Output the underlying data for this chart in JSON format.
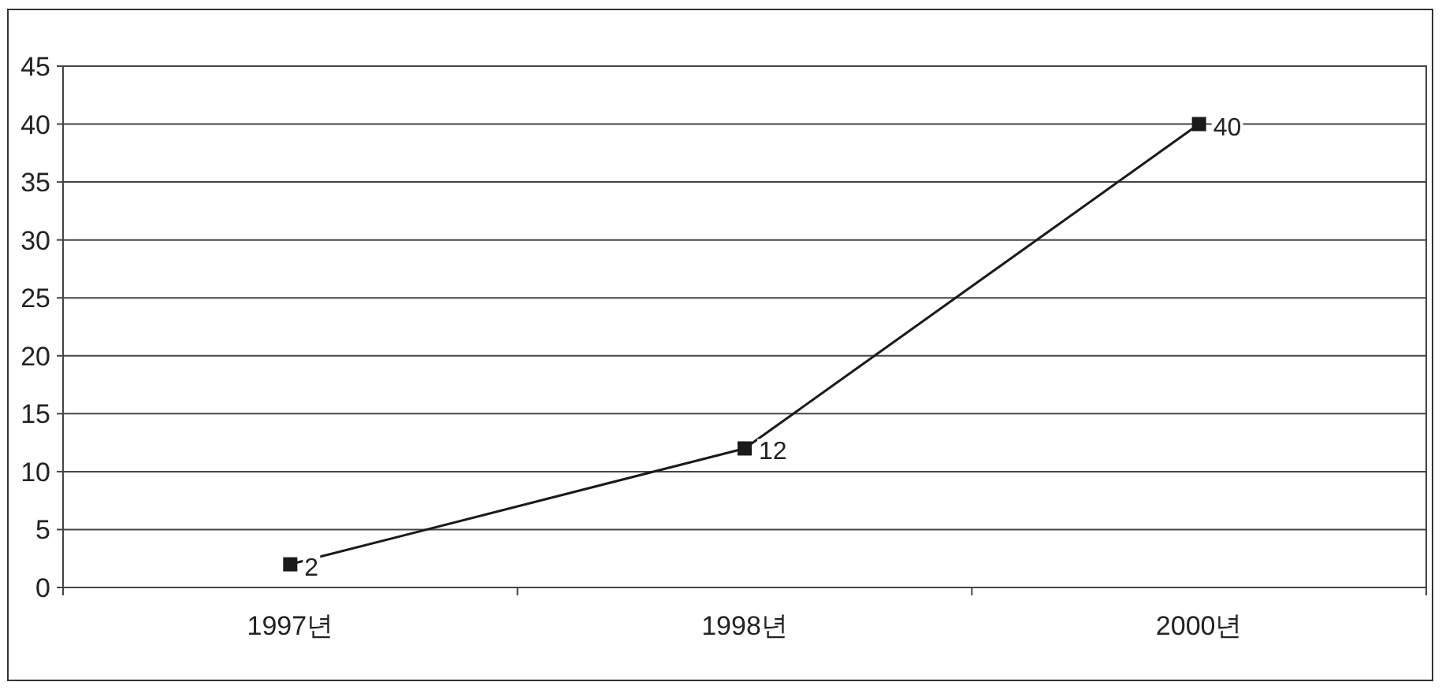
{
  "chart_data": {
    "type": "line",
    "categories": [
      "1997년",
      "1998년",
      "2000년"
    ],
    "series": [
      {
        "color": "#1a1a1a",
        "values": [
          2,
          12,
          40
        ]
      }
    ],
    "ylim": [
      0,
      45
    ],
    "yticks": [
      0,
      5,
      10,
      15,
      20,
      25,
      30,
      35,
      40,
      45
    ],
    "grid": "y",
    "marker": "square",
    "data_labels": true
  }
}
